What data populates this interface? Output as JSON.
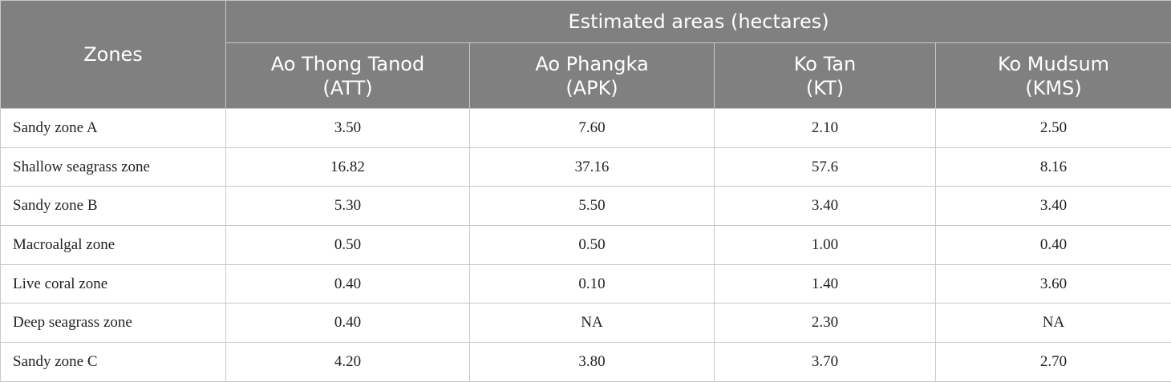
{
  "header": {
    "zones_label": "Zones",
    "group_label": "Estimated areas (hectares)",
    "columns": [
      {
        "name": "Ao Thong Tanod",
        "code": "(ATT)"
      },
      {
        "name": "Ao Phangka",
        "code": "(APK)"
      },
      {
        "name": "Ko Tan",
        "code": "(KT)"
      },
      {
        "name": "Ko Mudsum",
        "code": "(KMS)"
      }
    ]
  },
  "rows": [
    {
      "zone": "Sandy zone A",
      "values": [
        "3.50",
        "7.60",
        "2.10",
        "2.50"
      ]
    },
    {
      "zone": "Shallow seagrass zone",
      "values": [
        "16.82",
        "37.16",
        "57.6",
        "8.16"
      ]
    },
    {
      "zone": "Sandy zone B",
      "values": [
        "5.30",
        "5.50",
        "3.40",
        "3.40"
      ]
    },
    {
      "zone": "Macroalgal zone",
      "values": [
        "0.50",
        "0.50",
        "1.00",
        "0.40"
      ]
    },
    {
      "zone": "Live coral zone",
      "values": [
        "0.40",
        "0.10",
        "1.40",
        "3.60"
      ]
    },
    {
      "zone": "Deep seagrass zone",
      "values": [
        "0.40",
        "NA",
        "2.30",
        "NA"
      ]
    },
    {
      "zone": "Sandy zone C",
      "values": [
        "4.20",
        "3.80",
        "3.70",
        "2.70"
      ]
    }
  ]
}
